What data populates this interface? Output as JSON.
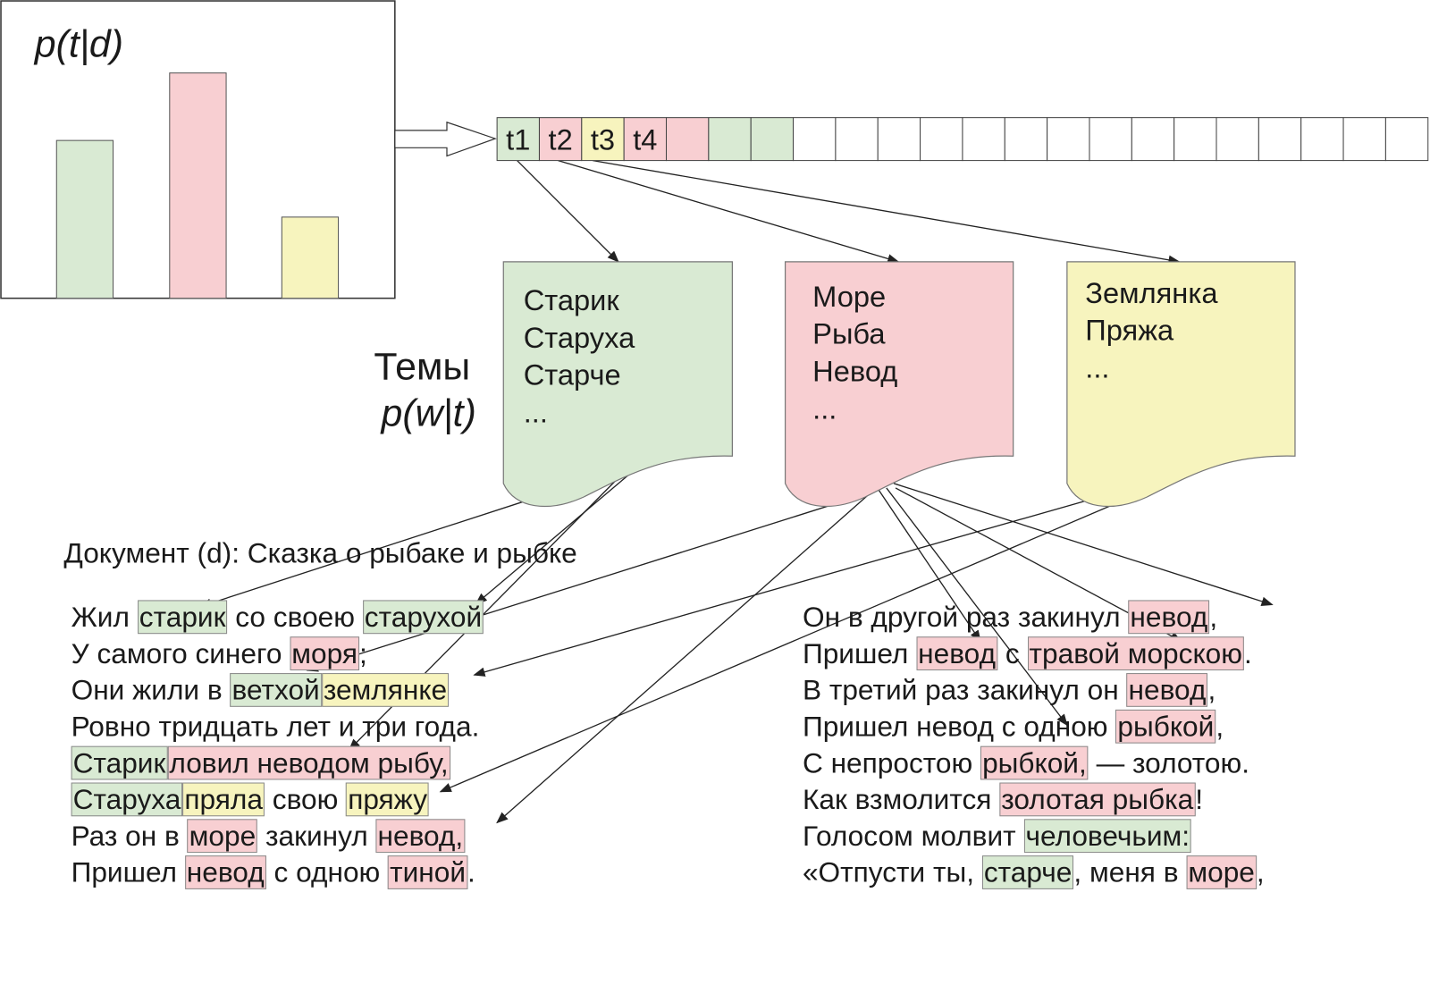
{
  "chart_label": "p(t|d)",
  "tokens": [
    "t1",
    "t2",
    "t3",
    "t4"
  ],
  "topics_label": {
    "title": "Темы",
    "formula": "p(w|t)"
  },
  "topics": [
    {
      "color": "#d9ead3",
      "words": [
        "Старик",
        "Старуха",
        "Старче",
        "..."
      ]
    },
    {
      "color": "#f8cfd2",
      "words": [
        "Море",
        "Рыба",
        "Невод",
        "..."
      ]
    },
    {
      "color": "#f7f4be",
      "words": [
        "Землянка",
        "Пряжа",
        "..."
      ]
    }
  ],
  "document": {
    "title": "Документ (d): Сказка о рыбаке и рыбке",
    "left": [
      [
        {
          "text": "Жил "
        },
        {
          "text": "старик",
          "color": "#d9ead3"
        },
        {
          "text": " со своею "
        },
        {
          "text": "старухой",
          "color": "#d9ead3"
        }
      ],
      [
        {
          "text": "У самого синего "
        },
        {
          "text": "моря",
          "color": "#f8cfd2"
        },
        {
          "text": ";"
        }
      ],
      [
        {
          "text": "Они жили в "
        },
        {
          "text": "ветхой",
          "color": "#d9ead3"
        },
        {
          "text": "землянке",
          "color": "#f7f4be"
        }
      ],
      [
        {
          "text": "Ровно тридцать лет и три года."
        }
      ],
      [
        {
          "text": "Старик",
          "color": "#d9ead3"
        },
        {
          "text": "ловил неводом рыбу,",
          "color": "#f8cfd2"
        }
      ],
      [
        {
          "text": "Старуха",
          "color": "#d9ead3"
        },
        {
          "text": "пряла",
          "color": "#f7f4be"
        },
        {
          "text": " свою "
        },
        {
          "text": "пряжу",
          "color": "#f7f4be"
        }
      ],
      [
        {
          "text": "Раз он в "
        },
        {
          "text": "море",
          "color": "#f8cfd2"
        },
        {
          "text": " закинул "
        },
        {
          "text": "невод,",
          "color": "#f8cfd2"
        }
      ],
      [
        {
          "text": "Пришел "
        },
        {
          "text": "невод",
          "color": "#f8cfd2"
        },
        {
          "text": " с одною "
        },
        {
          "text": "тиной",
          "color": "#f8cfd2"
        },
        {
          "text": "."
        }
      ]
    ],
    "right": [
      [
        {
          "text": "Он в другой раз закинул "
        },
        {
          "text": "невод",
          "color": "#f8cfd2"
        },
        {
          "text": ","
        }
      ],
      [
        {
          "text": "Пришел "
        },
        {
          "text": "невод",
          "color": "#f8cfd2"
        },
        {
          "text": " с "
        },
        {
          "text": "травой морскою",
          "color": "#f8cfd2"
        },
        {
          "text": "."
        }
      ],
      [
        {
          "text": "В третий раз закинул он "
        },
        {
          "text": "невод",
          "color": "#f8cfd2"
        },
        {
          "text": ","
        }
      ],
      [
        {
          "text": "Пришел невод с одною "
        },
        {
          "text": "рыбкой",
          "color": "#f8cfd2"
        },
        {
          "text": ","
        }
      ],
      [
        {
          "text": "С непростою "
        },
        {
          "text": "рыбкой,",
          "color": "#f8cfd2"
        },
        {
          "text": " — золотою."
        }
      ],
      [
        {
          "text": "Как взмолится "
        },
        {
          "text": "золотая рыбка",
          "color": "#f8cfd2"
        },
        {
          "text": "!"
        }
      ],
      [
        {
          "text": "Голосом молвит "
        },
        {
          "text": "человечьим:",
          "color": "#d9ead3"
        }
      ],
      [
        {
          "text": "«Отпусти ты, "
        },
        {
          "text": "старче",
          "color": "#d9ead3"
        },
        {
          "text": ", меня в "
        },
        {
          "text": "море",
          "color": "#f8cfd2"
        },
        {
          "text": ","
        }
      ]
    ]
  }
}
